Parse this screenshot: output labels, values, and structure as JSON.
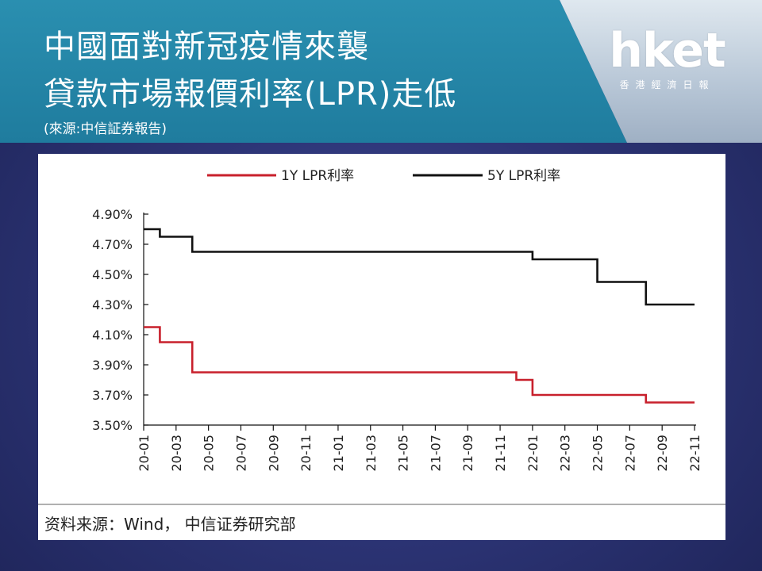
{
  "header": {
    "title_line1": "中國面對新冠疫情來襲",
    "title_line2": "貸款市場報價利率(LPR)走低",
    "source": "(來源:中信証券報告)"
  },
  "logo": {
    "main": "hket",
    "sub": "香港經濟日報"
  },
  "footer": {
    "source_text": "资料来源：Wind， 中信证券研究部"
  },
  "chart_data": {
    "type": "line",
    "step": true,
    "legend_position": "top-center",
    "grid": false,
    "yticks": [
      "4.90%",
      "4.70%",
      "4.50%",
      "4.30%",
      "4.10%",
      "3.90%",
      "3.70%",
      "3.50%"
    ],
    "ylim": [
      3.5,
      4.9
    ],
    "xticks": [
      "20-01",
      "20-03",
      "20-05",
      "20-07",
      "20-09",
      "20-11",
      "21-01",
      "21-03",
      "21-05",
      "21-07",
      "21-09",
      "21-11",
      "22-01",
      "22-03",
      "22-05",
      "22-07",
      "22-09",
      "22-11"
    ],
    "x_range": [
      "20-01",
      "22-11"
    ],
    "series": [
      {
        "name": "1Y LPR利率",
        "color": "#c8202c",
        "points": [
          [
            "20-01",
            4.15
          ],
          [
            "20-02",
            4.05
          ],
          [
            "20-04",
            3.85
          ],
          [
            "21-12",
            3.8
          ],
          [
            "22-01",
            3.7
          ],
          [
            "22-08",
            3.65
          ],
          [
            "22-11",
            3.65
          ]
        ]
      },
      {
        "name": "5Y LPR利率",
        "color": "#111111",
        "points": [
          [
            "20-01",
            4.8
          ],
          [
            "20-02",
            4.75
          ],
          [
            "20-04",
            4.65
          ],
          [
            "22-01",
            4.6
          ],
          [
            "22-05",
            4.45
          ],
          [
            "22-08",
            4.3
          ],
          [
            "22-11",
            4.3
          ]
        ]
      }
    ]
  }
}
